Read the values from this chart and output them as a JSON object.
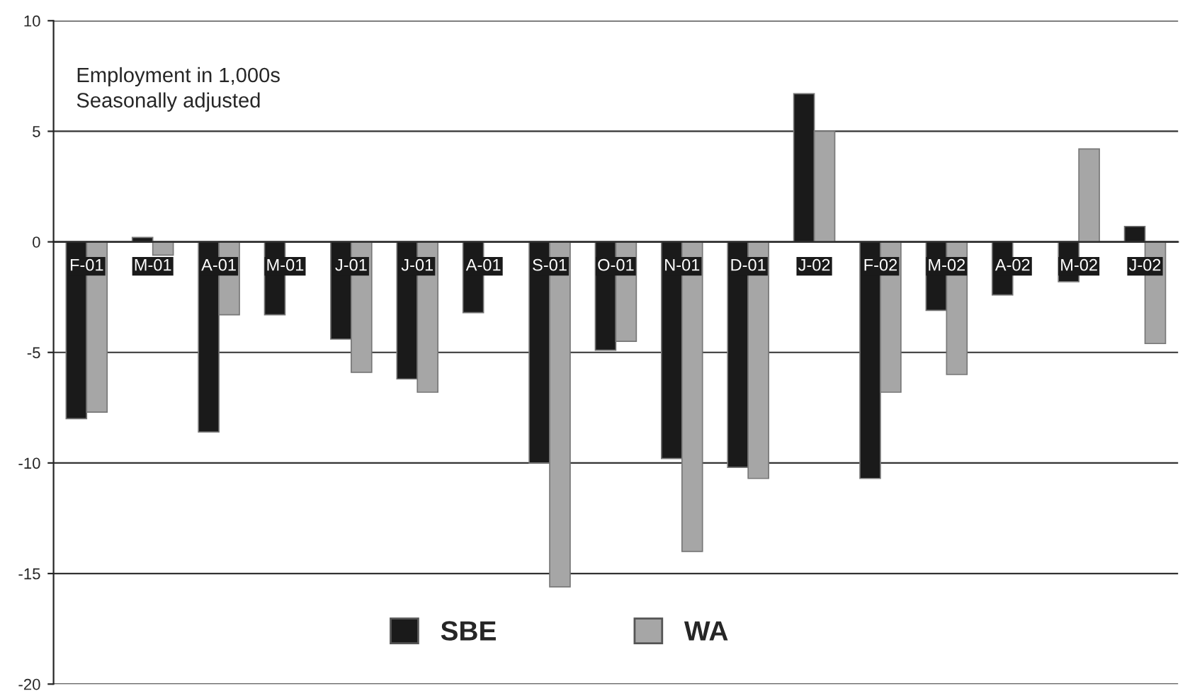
{
  "chart_data": {
    "type": "bar",
    "categories": [
      "F-01",
      "M-01",
      "A-01",
      "M-01",
      "J-01",
      "J-01",
      "A-01",
      "S-01",
      "O-01",
      "N-01",
      "D-01",
      "J-02",
      "F-02",
      "M-02",
      "A-02",
      "M-02",
      "J-02"
    ],
    "series": [
      {
        "name": "SBE",
        "color": "#1a1a1a",
        "values": [
          -8.0,
          0.2,
          -8.6,
          -3.3,
          -4.4,
          -6.2,
          -3.2,
          -10.0,
          -4.9,
          -9.8,
          -10.2,
          6.7,
          -10.7,
          -3.1,
          -2.4,
          -1.8,
          0.7
        ]
      },
      {
        "name": "WA",
        "color": "#a6a6a6",
        "values": [
          -7.7,
          -0.6,
          -3.3,
          null,
          -5.9,
          -6.8,
          null,
          -15.6,
          -4.5,
          -14.0,
          -10.7,
          5.0,
          -6.8,
          -6.0,
          null,
          4.2,
          -4.6
        ]
      }
    ],
    "annotations": [
      "Employment in 1,000s\nSeasonally adjusted"
    ],
    "ylim": [
      -20,
      10
    ],
    "yticks": [
      -20,
      -15,
      -10,
      -5,
      0,
      5,
      10
    ],
    "grid": "y",
    "legend": "bottom"
  }
}
